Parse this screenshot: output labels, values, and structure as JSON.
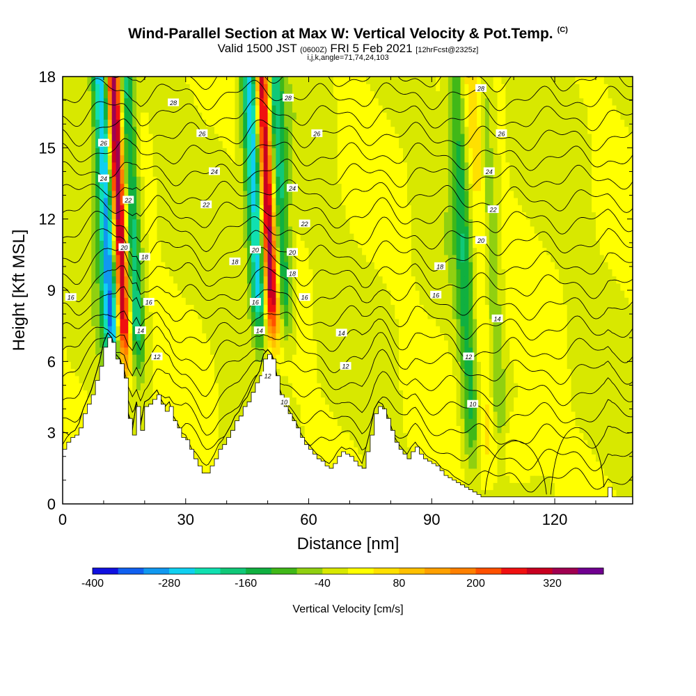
{
  "header": {
    "title": "Wind-Parallel Section at Max W: Vertical Velocity & Pot.Temp.",
    "title_mark": "(C)",
    "valid_a": "Valid 1500 JST",
    "valid_utc": "(0600Z)",
    "valid_b": "FRI 5 Feb 2021",
    "valid_fcst": "[12hrFcst@2325z]",
    "ijk": "i,j,k,angle=71,74,24,103"
  },
  "chart_data": {
    "type": "heatmap",
    "title": "Wind-Parallel Section at Max W: Vertical Velocity & Pot.Temp.",
    "xlabel": "Distance [nm]",
    "ylabel": "Height [Kft MSL]",
    "xlim": [
      0,
      139
    ],
    "ylim": [
      0,
      18
    ],
    "xticks": [
      0,
      30,
      60,
      90,
      120
    ],
    "yticks": [
      0,
      3,
      6,
      9,
      12,
      15,
      18
    ],
    "colorbar": {
      "label": "Vertical Velocity [cm/s]",
      "min": -400,
      "max": 400,
      "step": 40,
      "tick_values": [
        -400,
        -280,
        -160,
        -40,
        80,
        200,
        320
      ],
      "colors": [
        "#1010e0",
        "#1060f0",
        "#1098f0",
        "#10d0f0",
        "#10e0b0",
        "#10c878",
        "#10b040",
        "#40b818",
        "#90d010",
        "#d8e800",
        "#ffff00",
        "#ffe000",
        "#ffc000",
        "#ffa000",
        "#ff8000",
        "#ff5000",
        "#f01010",
        "#c80020",
        "#a00050",
        "#700090"
      ]
    },
    "terrain": {
      "x": [
        0,
        1,
        2,
        3,
        4,
        5,
        6,
        7,
        8,
        9,
        10,
        11,
        12,
        13,
        14,
        15,
        16,
        17,
        18,
        19,
        20,
        21,
        22,
        23,
        24,
        25,
        26,
        27,
        28,
        29,
        30,
        31,
        32,
        33,
        34,
        35,
        36,
        37,
        38,
        39,
        40,
        41,
        42,
        43,
        44,
        45,
        46,
        47,
        48,
        49,
        50,
        51,
        52,
        53,
        54,
        55,
        56,
        57,
        58,
        59,
        60,
        61,
        62,
        63,
        64,
        65,
        66,
        67,
        68,
        69,
        70,
        71,
        72,
        73,
        74,
        75,
        76,
        77,
        78,
        79,
        80,
        81,
        82,
        83,
        84,
        85,
        86,
        87,
        88,
        89,
        90,
        91,
        92,
        93,
        94,
        95,
        96,
        97,
        98,
        99,
        100,
        101,
        102,
        103,
        104,
        105,
        106,
        107,
        108,
        109,
        110,
        111,
        112,
        113,
        114,
        115,
        116,
        117,
        118,
        119,
        120,
        121,
        122,
        123,
        124,
        125,
        126,
        127,
        128,
        129,
        130,
        131,
        132,
        133,
        134,
        135,
        136,
        137,
        138,
        139
      ],
      "height": [
        2.3,
        2.6,
        2.8,
        2.9,
        3.2,
        3.8,
        4.2,
        4.6,
        5.2,
        5.8,
        6.6,
        7.0,
        6.8,
        6.1,
        5.9,
        5.3,
        3.6,
        2.9,
        4.1,
        3.1,
        4.1,
        4.2,
        4.4,
        4.6,
        4.2,
        3.9,
        4.1,
        3.5,
        3.2,
        2.8,
        2.7,
        2.3,
        1.9,
        1.6,
        1.3,
        1.3,
        1.6,
        1.9,
        2.3,
        2.5,
        2.8,
        3.1,
        3.5,
        3.7,
        4.1,
        4.3,
        4.7,
        5.1,
        5.4,
        6.1,
        6.3,
        6.1,
        5.4,
        4.6,
        4.1,
        3.8,
        3.5,
        3.2,
        2.8,
        2.5,
        2.3,
        2.1,
        1.9,
        1.8,
        1.6,
        1.5,
        1.7,
        2.0,
        2.2,
        2.1,
        2.0,
        1.8,
        1.6,
        1.5,
        2.2,
        2.9,
        3.8,
        4.1,
        4.0,
        3.6,
        3.1,
        2.6,
        2.3,
        2.1,
        1.9,
        2.2,
        2.4,
        2.1,
        1.9,
        1.8,
        1.7,
        1.6,
        1.4,
        1.2,
        1.1,
        1.0,
        0.9,
        0.8,
        0.7,
        0.6,
        0.5,
        0.4,
        0.3,
        0.3,
        0.3,
        0.3,
        0.3,
        0.3,
        0.3,
        0.3,
        0.3,
        0.3,
        0.3,
        0.3,
        0.3,
        0.3,
        0.3,
        0.3,
        0.3,
        0.3,
        0.3,
        0.3,
        0.3,
        0.3,
        0.3,
        0.3,
        0.3,
        0.3,
        0.3,
        0.3,
        0.3,
        0.3,
        0.3,
        0.7,
        0.3,
        0.3,
        0.3,
        0.3,
        0.3,
        0.3
      ]
    },
    "theta_contours": [
      10,
      12,
      14,
      16,
      18,
      20,
      22,
      24,
      26,
      28
    ],
    "contour_labels": [
      {
        "text": "16",
        "x": 2,
        "y": 8.7
      },
      {
        "text": "26",
        "x": 10,
        "y": 15.2
      },
      {
        "text": "24",
        "x": 10,
        "y": 13.7
      },
      {
        "text": "22",
        "x": 16,
        "y": 12.8
      },
      {
        "text": "20",
        "x": 15,
        "y": 10.8
      },
      {
        "text": "18",
        "x": 20,
        "y": 10.4
      },
      {
        "text": "16",
        "x": 21,
        "y": 8.5
      },
      {
        "text": "14",
        "x": 19,
        "y": 7.3
      },
      {
        "text": "12",
        "x": 23,
        "y": 6.2
      },
      {
        "text": "28",
        "x": 27,
        "y": 16.9
      },
      {
        "text": "26",
        "x": 34,
        "y": 15.6
      },
      {
        "text": "24",
        "x": 37,
        "y": 14.0
      },
      {
        "text": "22",
        "x": 35,
        "y": 12.6
      },
      {
        "text": "18",
        "x": 42,
        "y": 10.2
      },
      {
        "text": "20",
        "x": 47,
        "y": 10.7
      },
      {
        "text": "16",
        "x": 47,
        "y": 8.5
      },
      {
        "text": "14",
        "x": 48,
        "y": 7.3
      },
      {
        "text": "12",
        "x": 50,
        "y": 5.4
      },
      {
        "text": "10",
        "x": 54,
        "y": 4.3
      },
      {
        "text": "28",
        "x": 55,
        "y": 17.1
      },
      {
        "text": "26",
        "x": 62,
        "y": 15.6
      },
      {
        "text": "24",
        "x": 56,
        "y": 13.3
      },
      {
        "text": "22",
        "x": 59,
        "y": 11.8
      },
      {
        "text": "20",
        "x": 56,
        "y": 10.6
      },
      {
        "text": "18",
        "x": 56,
        "y": 9.7
      },
      {
        "text": "16",
        "x": 59,
        "y": 8.7
      },
      {
        "text": "14",
        "x": 68,
        "y": 7.2
      },
      {
        "text": "12",
        "x": 69,
        "y": 5.8
      },
      {
        "text": "28",
        "x": 102,
        "y": 17.5
      },
      {
        "text": "26",
        "x": 107,
        "y": 15.6
      },
      {
        "text": "24",
        "x": 104,
        "y": 14.0
      },
      {
        "text": "22",
        "x": 105,
        "y": 12.4
      },
      {
        "text": "20",
        "x": 102,
        "y": 11.1
      },
      {
        "text": "18",
        "x": 92,
        "y": 10.0
      },
      {
        "text": "16",
        "x": 91,
        "y": 8.8
      },
      {
        "text": "14",
        "x": 106,
        "y": 7.8
      },
      {
        "text": "12",
        "x": 99,
        "y": 6.2
      },
      {
        "text": "10",
        "x": 100,
        "y": 4.2
      }
    ]
  }
}
